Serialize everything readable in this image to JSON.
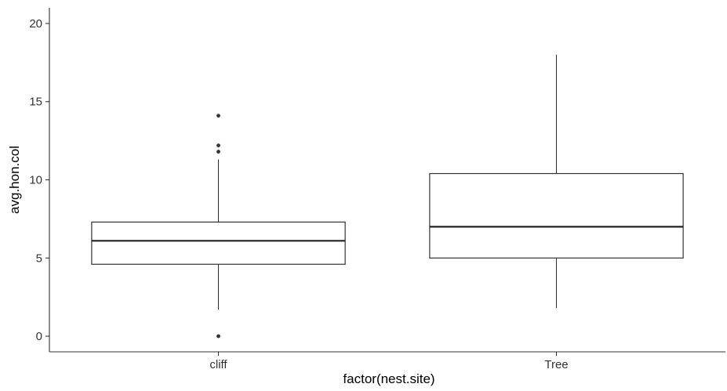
{
  "chart_data": {
    "type": "boxplot",
    "xlabel": "factor(nest.site)",
    "ylabel": "avg.hon.col",
    "categories": [
      "cliff",
      "Tree"
    ],
    "ylim": [
      -1,
      21
    ],
    "yticks": [
      0,
      5,
      10,
      15,
      20
    ],
    "boxes": [
      {
        "category": "cliff",
        "whisker_low": 1.7,
        "q1": 4.6,
        "median": 6.1,
        "q3": 7.3,
        "whisker_high": 11.3,
        "outliers": [
          0,
          11.8,
          12.2,
          14.1
        ]
      },
      {
        "category": "Tree",
        "whisker_low": 1.8,
        "q1": 5.0,
        "median": 7.0,
        "q3": 10.4,
        "whisker_high": 18.0,
        "outliers": []
      }
    ],
    "grid": false,
    "legend": "none"
  }
}
